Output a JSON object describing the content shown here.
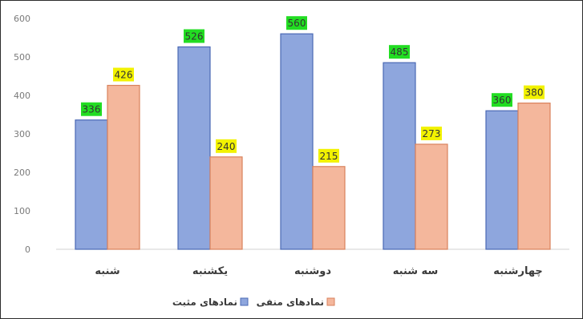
{
  "chart_data": {
    "type": "bar",
    "categories": [
      "شنبه",
      "یکشنبه",
      "دوشنبه",
      "سه شنبه",
      "چهارشنبه"
    ],
    "series": [
      {
        "name": "نمادهای مثبت",
        "values": [
          336,
          526,
          560,
          485,
          360
        ],
        "color": "#8ea6dd",
        "stroke": "#4a69b5",
        "label_bg": "#22dd22"
      },
      {
        "name": "نمادهای منفی",
        "values": [
          426,
          240,
          215,
          273,
          380
        ],
        "color": "#f4b79c",
        "stroke": "#d9825c",
        "label_bg": "#f2f200"
      }
    ],
    "ylim": [
      0,
      600
    ],
    "yticks": [
      0,
      100,
      200,
      300,
      400,
      500,
      600
    ],
    "grid": false,
    "legend_position": "bottom",
    "title": "",
    "xlabel": "",
    "ylabel": ""
  }
}
